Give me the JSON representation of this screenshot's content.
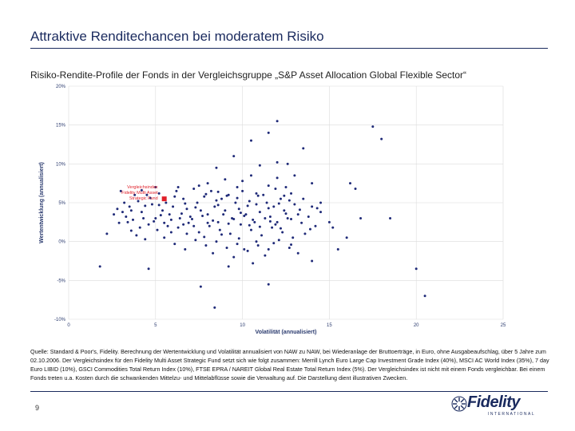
{
  "header": {
    "title": "Attraktive Renditechancen bei moderatem Risiko"
  },
  "subtitle": "Risiko-Rendite-Profile der Fonds in der Vergleichsgruppe „S&P Asset Allocation Global Flexible Sector“",
  "chart_data": {
    "type": "scatter",
    "xlabel": "Volatilität (annualisiert)",
    "ylabel": "Wertentwicklung (annualisiert)",
    "xlim": [
      0,
      25
    ],
    "ylim": [
      -10,
      20
    ],
    "xticks": [
      "0",
      "5",
      "10",
      "15",
      "20",
      "25"
    ],
    "yticks": [
      "20%",
      "15%",
      "10%",
      "5%",
      "0%",
      "-5%",
      "-10%"
    ],
    "grid": true,
    "colors": {
      "points": "#1f2a78",
      "highlight": "#e0202a",
      "grid": "#dcdcdc"
    },
    "highlight": {
      "label_lines": [
        "Vergleichsindex",
        "Fidelity Multi Asset",
        "Strategic Fund"
      ],
      "x": 5.5,
      "y": 5.5
    },
    "points": [
      [
        3.0,
        6.5
      ],
      [
        3.2,
        5.0
      ],
      [
        3.5,
        4.5
      ],
      [
        3.8,
        6.0
      ],
      [
        4.0,
        5.2
      ],
      [
        4.2,
        3.8
      ],
      [
        4.5,
        6.0
      ],
      [
        4.8,
        4.8
      ],
      [
        5.0,
        3.0
      ],
      [
        5.2,
        6.2
      ],
      [
        5.4,
        4.0
      ],
      [
        5.6,
        5.0
      ],
      [
        5.8,
        3.5
      ],
      [
        6.0,
        4.5
      ],
      [
        6.2,
        6.5
      ],
      [
        6.4,
        3.0
      ],
      [
        6.6,
        5.5
      ],
      [
        6.8,
        4.2
      ],
      [
        7.0,
        3.2
      ],
      [
        7.2,
        6.8
      ],
      [
        7.4,
        5.0
      ],
      [
        7.6,
        4.0
      ],
      [
        7.8,
        5.8
      ],
      [
        8.0,
        3.5
      ],
      [
        8.2,
        6.5
      ],
      [
        8.4,
        4.5
      ],
      [
        8.6,
        2.5
      ],
      [
        8.8,
        5.5
      ],
      [
        9.0,
        4.0
      ],
      [
        9.2,
        6.0
      ],
      [
        9.4,
        3.0
      ],
      [
        9.6,
        5.0
      ],
      [
        9.8,
        4.2
      ],
      [
        10.0,
        6.5
      ],
      [
        10.2,
        3.5
      ],
      [
        10.4,
        5.2
      ],
      [
        10.6,
        2.8
      ],
      [
        10.8,
        4.8
      ],
      [
        11.0,
        3.8
      ],
      [
        11.2,
        6.0
      ],
      [
        11.4,
        5.0
      ],
      [
        11.6,
        3.2
      ],
      [
        11.8,
        4.5
      ],
      [
        12.0,
        2.5
      ],
      [
        12.2,
        5.5
      ],
      [
        12.4,
        4.0
      ],
      [
        12.6,
        3.0
      ],
      [
        12.8,
        6.2
      ],
      [
        13.0,
        4.8
      ],
      [
        13.2,
        3.5
      ],
      [
        13.5,
        5.5
      ],
      [
        14.0,
        4.5
      ],
      [
        14.5,
        3.8
      ],
      [
        3.4,
        2.5
      ],
      [
        4.1,
        1.8
      ],
      [
        4.6,
        2.2
      ],
      [
        5.1,
        1.5
      ],
      [
        5.7,
        2.0
      ],
      [
        6.3,
        1.8
      ],
      [
        6.9,
        2.4
      ],
      [
        7.5,
        1.2
      ],
      [
        8.1,
        2.0
      ],
      [
        8.7,
        1.5
      ],
      [
        9.3,
        1.0
      ],
      [
        9.9,
        2.2
      ],
      [
        10.5,
        1.5
      ],
      [
        11.1,
        0.8
      ],
      [
        11.7,
        1.8
      ],
      [
        12.3,
        1.2
      ],
      [
        12.9,
        0.5
      ],
      [
        13.6,
        1.0
      ],
      [
        14.2,
        2.0
      ],
      [
        7.3,
        0.2
      ],
      [
        7.9,
        -0.5
      ],
      [
        8.5,
        0.0
      ],
      [
        9.1,
        -0.8
      ],
      [
        9.7,
        -0.3
      ],
      [
        10.3,
        -1.2
      ],
      [
        10.9,
        -0.5
      ],
      [
        11.5,
        -1.0
      ],
      [
        12.1,
        0.2
      ],
      [
        12.7,
        -0.8
      ],
      [
        8.3,
        -1.5
      ],
      [
        9.5,
        -2.0
      ],
      [
        10.1,
        -1.0
      ],
      [
        11.3,
        -1.8
      ],
      [
        6.1,
        -0.3
      ],
      [
        5.5,
        0.5
      ],
      [
        4.4,
        0.3
      ],
      [
        3.9,
        0.8
      ],
      [
        2.6,
        3.5
      ],
      [
        2.8,
        4.2
      ],
      [
        3.3,
        3.2
      ],
      [
        3.7,
        2.8
      ],
      [
        4.3,
        3.0
      ],
      [
        4.9,
        2.6
      ],
      [
        5.3,
        3.4
      ],
      [
        5.9,
        2.8
      ],
      [
        6.5,
        3.6
      ],
      [
        7.1,
        2.9
      ],
      [
        7.7,
        3.3
      ],
      [
        8.3,
        2.7
      ],
      [
        8.9,
        3.5
      ],
      [
        9.5,
        2.9
      ],
      [
        10.1,
        3.3
      ],
      [
        10.7,
        2.5
      ],
      [
        11.3,
        3.0
      ],
      [
        11.9,
        2.2
      ],
      [
        12.5,
        3.6
      ],
      [
        8.0,
        7.5
      ],
      [
        9.0,
        8.0
      ],
      [
        10.0,
        7.8
      ],
      [
        10.5,
        8.5
      ],
      [
        11.5,
        7.2
      ],
      [
        12.0,
        8.2
      ],
      [
        12.5,
        7.0
      ],
      [
        13.0,
        8.5
      ],
      [
        14.0,
        7.5
      ],
      [
        8.5,
        9.5
      ],
      [
        9.5,
        11.0
      ],
      [
        11.0,
        9.8
      ],
      [
        12.0,
        10.2
      ],
      [
        13.5,
        12.0
      ],
      [
        10.5,
        13.0
      ],
      [
        11.5,
        14.0
      ],
      [
        12.0,
        15.5
      ],
      [
        12.6,
        10.0
      ],
      [
        14.5,
        5.0
      ],
      [
        15.0,
        2.5
      ],
      [
        15.5,
        -1.0
      ],
      [
        16.0,
        0.5
      ],
      [
        16.5,
        6.8
      ],
      [
        16.8,
        3.0
      ],
      [
        17.5,
        14.8
      ],
      [
        18.0,
        13.2
      ],
      [
        18.5,
        3.0
      ],
      [
        20.0,
        -3.5
      ],
      [
        20.5,
        -7.0
      ],
      [
        16.2,
        7.5
      ],
      [
        2.2,
        1.0
      ],
      [
        1.8,
        -3.2
      ],
      [
        4.6,
        -3.5
      ],
      [
        8.4,
        -8.5
      ],
      [
        11.5,
        -5.5
      ],
      [
        7.6,
        -5.8
      ],
      [
        9.2,
        -3.2
      ],
      [
        10.6,
        -2.8
      ],
      [
        14.0,
        -2.5
      ],
      [
        13.2,
        -1.5
      ],
      [
        6.7,
        -1.0
      ],
      [
        15.2,
        1.8
      ],
      [
        12.4,
        5.9
      ],
      [
        11.9,
        6.8
      ],
      [
        10.8,
        6.2
      ],
      [
        9.7,
        7.0
      ],
      [
        8.6,
        6.4
      ],
      [
        7.5,
        7.2
      ],
      [
        6.3,
        7.0
      ],
      [
        5.0,
        7.0
      ],
      [
        4.2,
        6.6
      ],
      [
        6.8,
        1.0
      ],
      [
        7.8,
        0.6
      ],
      [
        8.8,
        0.9
      ],
      [
        9.8,
        0.4
      ],
      [
        10.8,
        0.0
      ],
      [
        11.8,
        -0.2
      ],
      [
        12.8,
        -0.4
      ],
      [
        5.9,
        1.2
      ],
      [
        3.6,
        4.0
      ],
      [
        4.7,
        5.6
      ],
      [
        5.2,
        4.7
      ],
      [
        6.1,
        5.8
      ],
      [
        6.7,
        4.9
      ],
      [
        7.3,
        4.4
      ],
      [
        7.9,
        6.1
      ],
      [
        8.5,
        5.3
      ],
      [
        9.1,
        5.9
      ],
      [
        9.7,
        5.6
      ],
      [
        10.3,
        4.6
      ],
      [
        10.9,
        5.9
      ],
      [
        11.5,
        4.3
      ],
      [
        12.1,
        4.9
      ],
      [
        12.7,
        5.3
      ],
      [
        13.3,
        4.1
      ],
      [
        13.8,
        3.2
      ],
      [
        14.3,
        4.3
      ],
      [
        3.1,
        3.8
      ],
      [
        2.9,
        2.4
      ],
      [
        3.6,
        1.4
      ],
      [
        4.4,
        4.6
      ],
      [
        5.5,
        2.4
      ],
      [
        6.6,
        2.2
      ],
      [
        7.2,
        2.0
      ],
      [
        8.0,
        2.4
      ],
      [
        8.6,
        4.7
      ],
      [
        9.2,
        2.3
      ],
      [
        9.9,
        3.7
      ],
      [
        10.4,
        2.1
      ],
      [
        11.0,
        1.9
      ],
      [
        11.6,
        2.6
      ],
      [
        12.2,
        1.7
      ],
      [
        12.8,
        2.9
      ],
      [
        13.4,
        2.4
      ],
      [
        13.9,
        1.6
      ]
    ]
  },
  "source_text": "Quelle: Standard & Poor's, Fidelity. Berechnung der Wertentwicklung und Volatilität annualisiert von NAW zu NAW, bei Wiederanlage der Bruttoerträge, in Euro, ohne Ausgabeaufschlag, über 5 Jahre zum 02.10.2006. Der Vergleichsindex für den Fidelity Multi Asset Strategic Fund setzt sich wie folgt zusammen: Merrill Lynch Euro Large Cap Investment Grade Index (40%), MSCI AC World Index (35%), 7 day Euro LIBID (10%), GSCI Commodities Total Return Index (10%), FTSE EPRA / NAREIT Global Real Estate Total Return Index (5%). Der Vergleichsindex ist nicht mit einem Fonds vergleichbar. Bei einem Fonds treten u.a. Kosten durch die schwankenden Mittelzu- und Mittelabflüsse sowie die Verwaltung auf. Die Darstellung dient illustrativen Zwecken.",
  "footer": {
    "page_number": "9",
    "logo_word": "Fidelity",
    "logo_sub": "INTERNATIONAL"
  }
}
